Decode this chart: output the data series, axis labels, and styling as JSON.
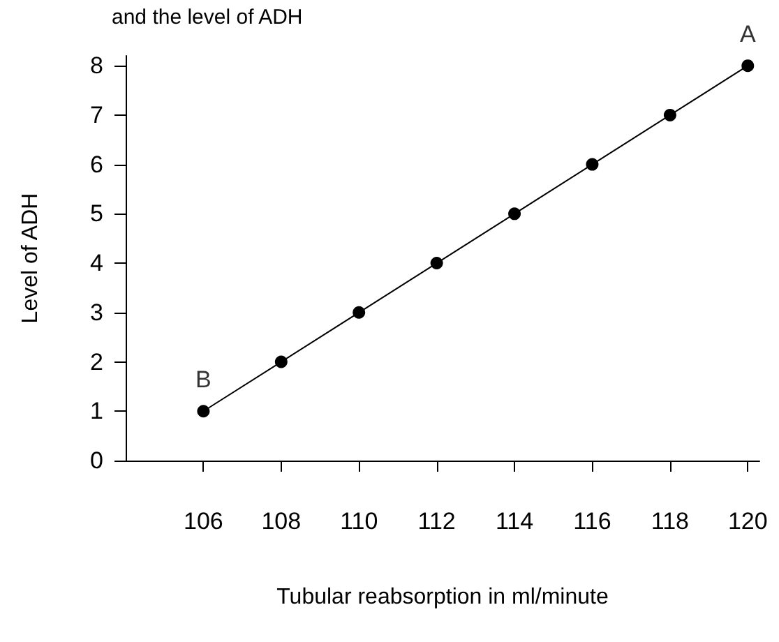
{
  "chart_data": {
    "type": "line",
    "title": "and the level of ADH",
    "xlabel": "Tubular reabsorption in ml/minute",
    "ylabel": "Level of ADH",
    "x": [
      106,
      108,
      110,
      112,
      114,
      116,
      118,
      120
    ],
    "series": [
      {
        "color": "#000000",
        "values": [
          1,
          2,
          3,
          4,
          5,
          6,
          7,
          8
        ]
      }
    ],
    "xlim": [
      104,
      120.3
    ],
    "xticks": [
      106,
      108,
      110,
      112,
      114,
      116,
      118,
      120
    ],
    "ylim": [
      0,
      8.2
    ],
    "yticks": [
      0,
      1,
      2,
      3,
      4,
      5,
      6,
      7,
      8
    ],
    "annotations": [
      {
        "text": "A",
        "x": 120,
        "y": 8
      },
      {
        "text": "B",
        "x": 106,
        "y": 1
      }
    ],
    "grid": false,
    "marker": "circle",
    "line_style": "solid"
  }
}
